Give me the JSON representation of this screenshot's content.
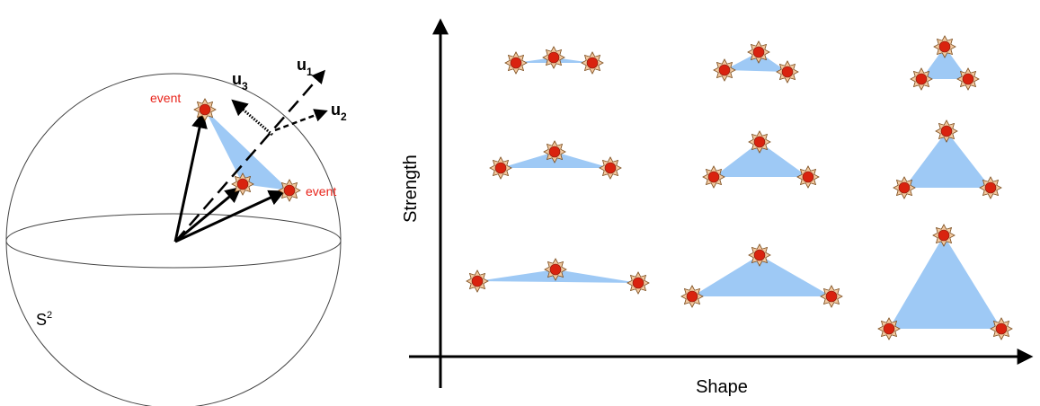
{
  "left_panel": {
    "sphere_label": "S",
    "sphere_label_sup": "2",
    "event_labels": [
      "event",
      "event"
    ],
    "vectors": [
      {
        "name": "u",
        "sub": "1"
      },
      {
        "name": "u",
        "sub": "2"
      },
      {
        "name": "u",
        "sub": "3"
      }
    ]
  },
  "right_panel": {
    "y_axis_label": "Strength",
    "x_axis_label": "Shape",
    "grid": {
      "rows": 3,
      "columns": 3
    }
  },
  "colors": {
    "event_fill": "#d9230f",
    "event_outline": "#7a4a1a",
    "triangle_fill": "#9ec9f5",
    "event_text": "#e8231a",
    "ink": "#000000"
  }
}
